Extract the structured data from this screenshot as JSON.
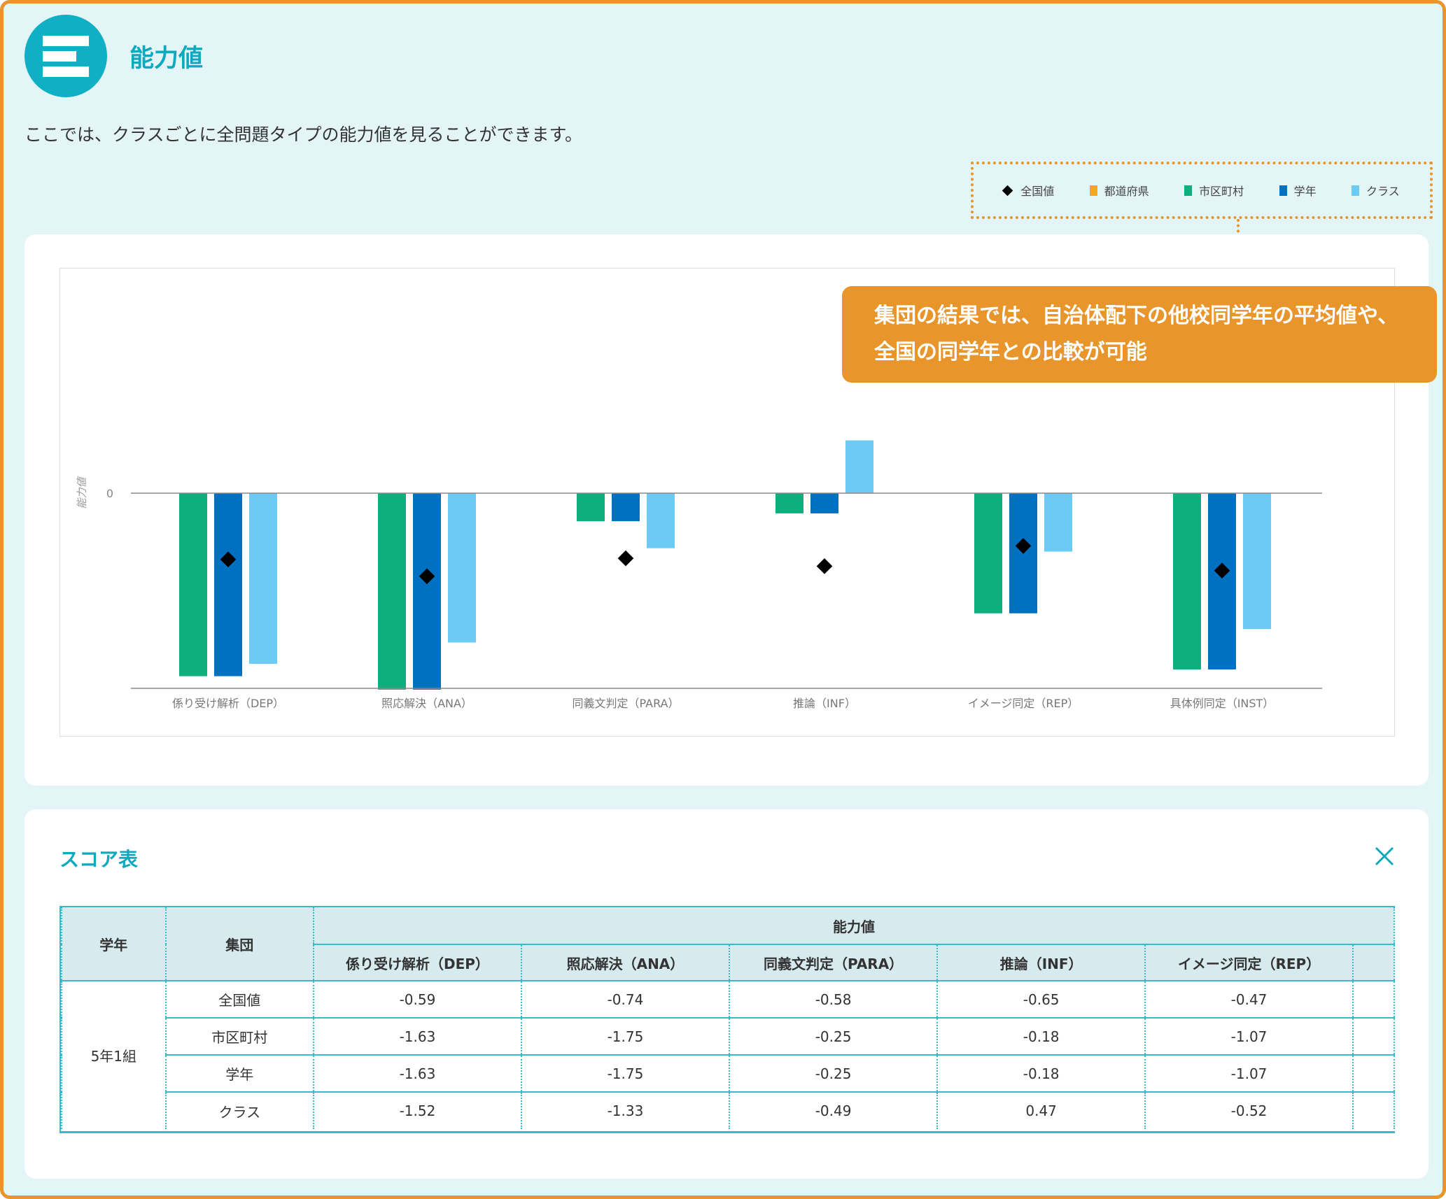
{
  "page": {
    "title": "能力値",
    "description": "ここでは、クラスごとに全問題タイプの能力値を見ることができます。"
  },
  "colors": {
    "accent": "#0fb0c5",
    "callout": "#e8952c",
    "全国値": "#000000",
    "都道府県": "#f5a623",
    "市区町村": "#0eaf7d",
    "学年": "#0070c0",
    "クラス": "#6ccbf4"
  },
  "legend": [
    {
      "label": "全国値",
      "marker": "diamond",
      "color": "#000000"
    },
    {
      "label": "都道府県",
      "marker": "square",
      "color": "#f5a623"
    },
    {
      "label": "市区町村",
      "marker": "square",
      "color": "#0eaf7d"
    },
    {
      "label": "学年",
      "marker": "square",
      "color": "#0070c0"
    },
    {
      "label": "クラス",
      "marker": "square",
      "color": "#6ccbf4"
    }
  ],
  "callout": {
    "line1": "集団の結果では、自治体配下の他校同学年の平均値や、",
    "line2": "全国の同学年との比較が可能"
  },
  "chart_data": {
    "type": "bar",
    "ylabel": "能力値",
    "y_tick": "0",
    "ylim": [
      -2.0,
      1.1
    ],
    "legend_position": "top-right",
    "grid": false,
    "categories": [
      "係り受け解析（DEP）",
      "照応解決（ANA）",
      "同義文判定（PARA）",
      "推論（INF）",
      "イメージ同定（REP）",
      "具体例同定（INST）"
    ],
    "series": [
      {
        "name": "市区町村",
        "type": "bar",
        "color": "#0eaf7d",
        "values": [
          -1.63,
          -1.75,
          -0.25,
          -0.18,
          -1.07,
          -1.57
        ]
      },
      {
        "name": "学年",
        "type": "bar",
        "color": "#0070c0",
        "values": [
          -1.63,
          -1.75,
          -0.25,
          -0.18,
          -1.07,
          -1.57
        ]
      },
      {
        "name": "クラス",
        "type": "bar",
        "color": "#6ccbf4",
        "values": [
          -1.52,
          -1.33,
          -0.49,
          0.47,
          -0.52,
          -1.21
        ]
      },
      {
        "name": "全国値",
        "type": "marker",
        "color": "#000000",
        "values": [
          -0.59,
          -0.74,
          -0.58,
          -0.65,
          -0.47,
          -0.69
        ]
      }
    ]
  },
  "table": {
    "title": "スコア表",
    "header_grade": "学年",
    "header_group": "集団",
    "header_ability": "能力値",
    "columns": [
      "係り受け解析（DEP）",
      "照応解決（ANA）",
      "同義文判定（PARA）",
      "推論（INF）",
      "イメージ同定（REP）"
    ],
    "grade_label": "5年1組",
    "rows": [
      {
        "group": "全国値",
        "values": [
          "-0.59",
          "-0.74",
          "-0.58",
          "-0.65",
          "-0.47"
        ]
      },
      {
        "group": "市区町村",
        "values": [
          "-1.63",
          "-1.75",
          "-0.25",
          "-0.18",
          "-1.07"
        ]
      },
      {
        "group": "学年",
        "values": [
          "-1.63",
          "-1.75",
          "-0.25",
          "-0.18",
          "-1.07"
        ]
      },
      {
        "group": "クラス",
        "values": [
          "-1.52",
          "-1.33",
          "-0.49",
          "0.47",
          "-0.52"
        ]
      }
    ]
  }
}
